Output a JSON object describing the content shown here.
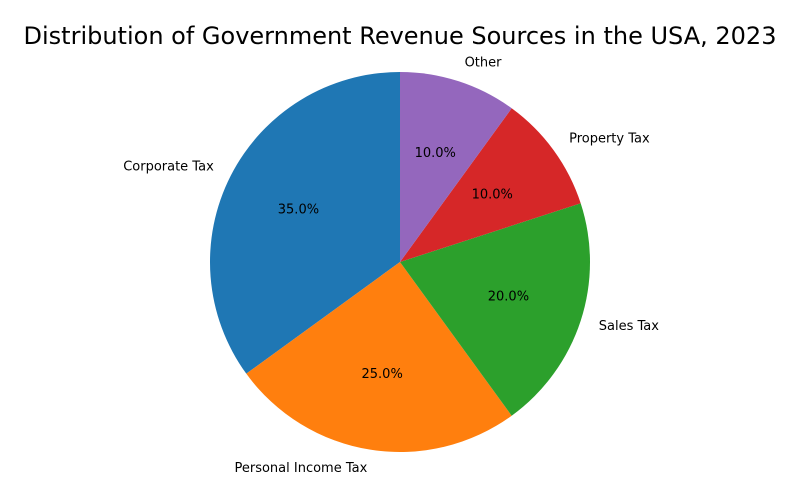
{
  "chart_data": {
    "type": "pie",
    "title": "Distribution of Government Revenue Sources in the USA, 2023",
    "categories": [
      "Corporate Tax",
      "Personal Income Tax",
      "Sales Tax",
      "Property Tax",
      "Other"
    ],
    "values": [
      35.0,
      25.0,
      20.0,
      10.0,
      10.0
    ],
    "value_labels": [
      "35.0%",
      "25.0%",
      "20.0%",
      "10.0%",
      "10.0%"
    ],
    "colors": [
      "#1f77b4",
      "#ff7f0e",
      "#2ca02c",
      "#d62728",
      "#9467bd"
    ],
    "start_angle": 90,
    "direction": "counterclockwise",
    "legend": "none"
  }
}
